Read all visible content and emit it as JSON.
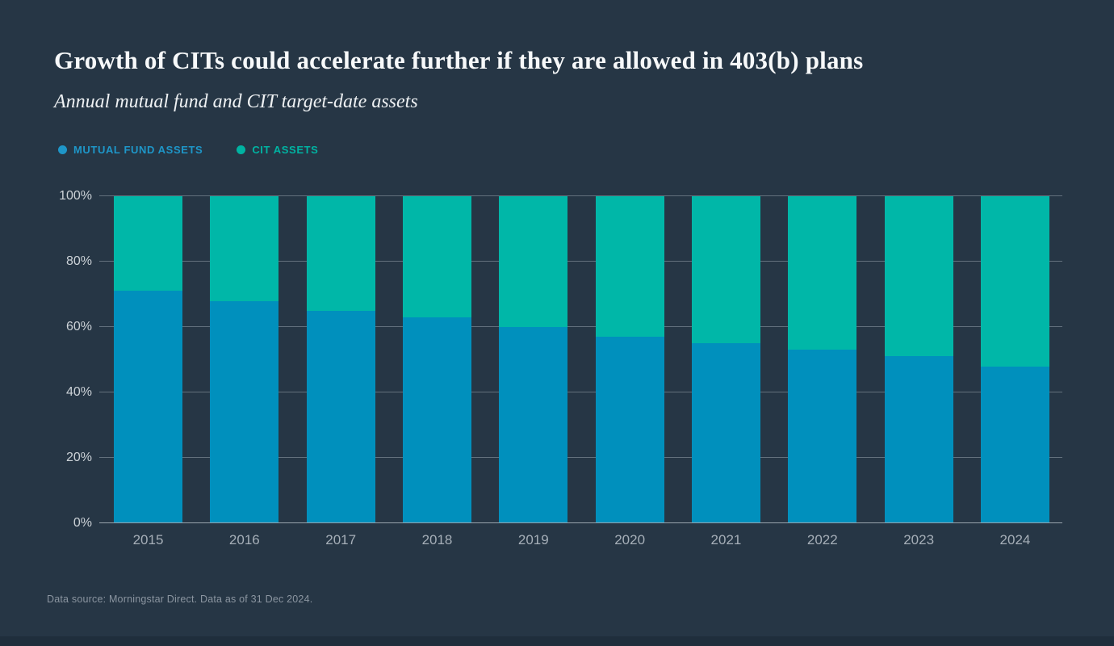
{
  "page": {
    "title": "Growth of CITs could accelerate further if they are allowed in 403(b) plans",
    "subtitle": "Annual mutual fund and CIT target-date assets",
    "footer": "Data source: Morningstar Direct. Data as of 31 Dec 2024."
  },
  "legend": {
    "items": [
      {
        "label": "MUTUAL FUND ASSETS",
        "color": "#1e96c8"
      },
      {
        "label": "CIT ASSETS",
        "color": "#00b3a2"
      }
    ],
    "position": "top-left"
  },
  "colors": {
    "background": "#263645",
    "bottom_strip": "#1f2e3c",
    "mutual_fund_bar": "#0090bd",
    "cit_bar": "#00b7a8",
    "gridline": "rgba(200,210,218,0.38)",
    "axis_line": "#9aa4ae",
    "y_tick_label": "#ccd2d7",
    "x_tick_label": "#a6afb8",
    "title_text": "#f7f9fa"
  },
  "chart_data": {
    "type": "bar",
    "stacked": true,
    "normalized_to_100pct": true,
    "title": "Growth of CITs could accelerate further if they are allowed in 403(b) plans",
    "subtitle": "Annual mutual fund and CIT target-date assets",
    "categories": [
      "2015",
      "2016",
      "2017",
      "2018",
      "2019",
      "2020",
      "2021",
      "2022",
      "2023",
      "2024"
    ],
    "series": [
      {
        "name": "Mutual Fund Assets",
        "color": "#0090bd",
        "values": [
          71,
          68,
          65,
          63,
          60,
          57,
          55,
          53,
          51,
          48
        ]
      },
      {
        "name": "CIT Assets",
        "color": "#00b7a8",
        "values": [
          29,
          32,
          35,
          37,
          40,
          43,
          45,
          47,
          49,
          52
        ]
      }
    ],
    "xlabel": "",
    "ylabel": "",
    "ylim": [
      0,
      100
    ],
    "y_ticks": [
      "0%",
      "20%",
      "40%",
      "60%",
      "80%",
      "100%"
    ],
    "grid": true,
    "legend_position": "top-left"
  }
}
